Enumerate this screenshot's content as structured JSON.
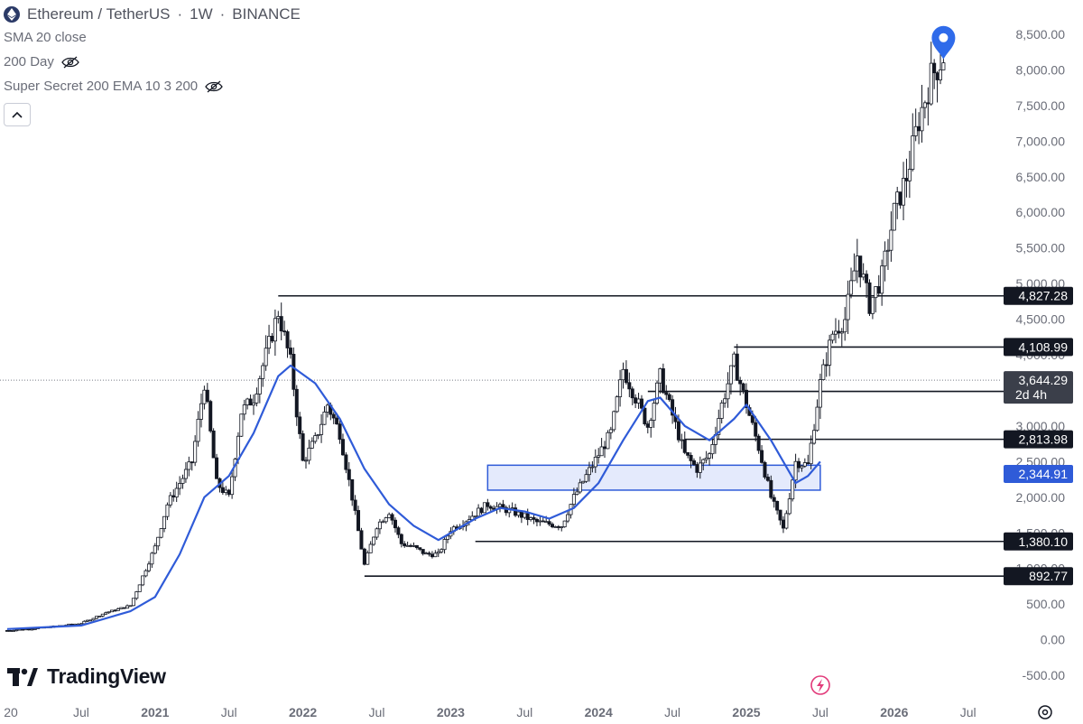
{
  "header": {
    "symbol": "Ethereum / TetherUS",
    "timeframe": "1W",
    "exchange": "BINANCE",
    "separator": "·"
  },
  "indicators": [
    {
      "label": "SMA 20 close",
      "hidden": false
    },
    {
      "label": "200 Day",
      "hidden": true
    },
    {
      "label": "Super Secret 200 EMA 10 3 200",
      "hidden": true
    }
  ],
  "brand": {
    "name": "TradingView"
  },
  "colors": {
    "candle": "#131722",
    "sma": "#2f5bd8",
    "zone_fill": "#dbe3fb",
    "zone_border": "#2f5bd8",
    "level_line": "#131722",
    "axis_text": "#6a6d78",
    "marker": "#2f6bea"
  },
  "chart_data": {
    "type": "candlestick",
    "title": "Ethereum / TetherUS · 1W · BINANCE",
    "x": {
      "ticks": [
        "20",
        "Jul",
        "2021",
        "Jul",
        "2022",
        "Jul",
        "2023",
        "Jul",
        "2024",
        "Jul",
        "2025",
        "Jul",
        "2026",
        "Jul"
      ],
      "range": [
        "2020-01",
        "2026-09"
      ]
    },
    "y": {
      "ticks": [
        "8,500.00",
        "8,000.00",
        "7,500.00",
        "7,000.00",
        "6,500.00",
        "6,000.00",
        "5,500.00",
        "5,000.00",
        "4,500.00",
        "4,000.00",
        "3,500.00",
        "3,000.00",
        "2,500.00",
        "2,000.00",
        "1,500.00",
        "1,000.00",
        "500.00",
        "0.00",
        "-500.00"
      ],
      "range": [
        -600,
        8550
      ]
    },
    "price_path": [
      [
        "2020-01",
        130
      ],
      [
        "2020-04",
        170
      ],
      [
        "2020-07",
        230
      ],
      [
        "2020-09",
        380
      ],
      [
        "2020-11",
        480
      ],
      [
        "2021-01",
        1300
      ],
      [
        "2021-02",
        1900
      ],
      [
        "2021-04",
        2500
      ],
      [
        "2021-05",
        3600
      ],
      [
        "2021-06",
        2200
      ],
      [
        "2021-07",
        2000
      ],
      [
        "2021-08",
        3200
      ],
      [
        "2021-09",
        3400
      ],
      [
        "2021-10",
        4000
      ],
      [
        "2021-11",
        4600
      ],
      [
        "2021-12",
        3900
      ],
      [
        "2022-01",
        2500
      ],
      [
        "2022-02",
        2800
      ],
      [
        "2022-03",
        3300
      ],
      [
        "2022-04",
        2900
      ],
      [
        "2022-05",
        2000
      ],
      [
        "2022-06",
        1050
      ],
      [
        "2022-07",
        1600
      ],
      [
        "2022-08",
        1800
      ],
      [
        "2022-09",
        1350
      ],
      [
        "2022-10",
        1300
      ],
      [
        "2022-11",
        1200
      ],
      [
        "2022-12",
        1200
      ],
      [
        "2023-01",
        1550
      ],
      [
        "2023-02",
        1650
      ],
      [
        "2023-04",
        1900
      ],
      [
        "2023-06",
        1800
      ],
      [
        "2023-08",
        1650
      ],
      [
        "2023-10",
        1600
      ],
      [
        "2023-11",
        2000
      ],
      [
        "2023-12",
        2300
      ],
      [
        "2024-02",
        2900
      ],
      [
        "2024-03",
        3800
      ],
      [
        "2024-05",
        3000
      ],
      [
        "2024-06",
        3700
      ],
      [
        "2024-08",
        2600
      ],
      [
        "2024-09",
        2400
      ],
      [
        "2024-10",
        2600
      ],
      [
        "2024-11",
        3300
      ],
      [
        "2024-12",
        3900
      ],
      [
        "2025-01",
        3300
      ],
      [
        "2025-02",
        2700
      ],
      [
        "2025-03",
        2000
      ],
      [
        "2025-04",
        1550
      ],
      [
        "2025-05",
        2500
      ],
      [
        "2025-06",
        2450
      ],
      [
        "2025-07",
        3600
      ],
      [
        "2025-08",
        4300
      ],
      [
        "2025-09",
        4500
      ],
      [
        "2025-10",
        5400
      ],
      [
        "2025-11",
        4700
      ],
      [
        "2025-12",
        5100
      ],
      [
        "2026-01",
        6000
      ],
      [
        "2026-02",
        6500
      ],
      [
        "2026-03",
        7300
      ],
      [
        "2026-04",
        7900
      ],
      [
        "2026-05",
        8200
      ]
    ],
    "sma_20": [
      [
        "2020-01",
        150
      ],
      [
        "2020-07",
        200
      ],
      [
        "2020-11",
        400
      ],
      [
        "2021-01",
        600
      ],
      [
        "2021-03",
        1200
      ],
      [
        "2021-05",
        2000
      ],
      [
        "2021-07",
        2300
      ],
      [
        "2021-09",
        2900
      ],
      [
        "2021-11",
        3700
      ],
      [
        "2021-12",
        3850
      ],
      [
        "2022-02",
        3600
      ],
      [
        "2022-04",
        3100
      ],
      [
        "2022-06",
        2400
      ],
      [
        "2022-08",
        1900
      ],
      [
        "2022-10",
        1600
      ],
      [
        "2022-12",
        1400
      ],
      [
        "2023-01",
        1500
      ],
      [
        "2023-03",
        1700
      ],
      [
        "2023-05",
        1850
      ],
      [
        "2023-07",
        1800
      ],
      [
        "2023-09",
        1700
      ],
      [
        "2023-11",
        1850
      ],
      [
        "2024-01",
        2200
      ],
      [
        "2024-03",
        2800
      ],
      [
        "2024-05",
        3350
      ],
      [
        "2024-06",
        3400
      ],
      [
        "2024-08",
        3000
      ],
      [
        "2024-10",
        2800
      ],
      [
        "2024-12",
        3100
      ],
      [
        "2025-01",
        3300
      ],
      [
        "2025-03",
        2800
      ],
      [
        "2025-05",
        2200
      ],
      [
        "2025-06",
        2300
      ],
      [
        "2025-07",
        2500
      ]
    ],
    "levels": [
      {
        "label": "4,827.28",
        "value": 4827.28,
        "from": "2021-11"
      },
      {
        "label": "4,108.99",
        "value": 4108.99,
        "from": "2024-12"
      },
      {
        "label": "3,486.25",
        "value": 3486.25,
        "from": "2024-05"
      },
      {
        "label": "2,813.98",
        "value": 2813.98,
        "from": "2024-08"
      },
      {
        "label": "1,380.10",
        "value": 1380.1,
        "from": "2023-03"
      },
      {
        "label": "892.77",
        "value": 892.77,
        "from": "2022-06"
      }
    ],
    "zone": {
      "from": "2023-04",
      "to": "2025-07",
      "low": 2100,
      "high": 2450,
      "label": "2,344.91"
    },
    "current_price": {
      "label": "3,644.29",
      "value": 3644.29,
      "countdown": "2d 4h"
    },
    "marker": {
      "date": "2026-05",
      "value": 8350
    }
  }
}
